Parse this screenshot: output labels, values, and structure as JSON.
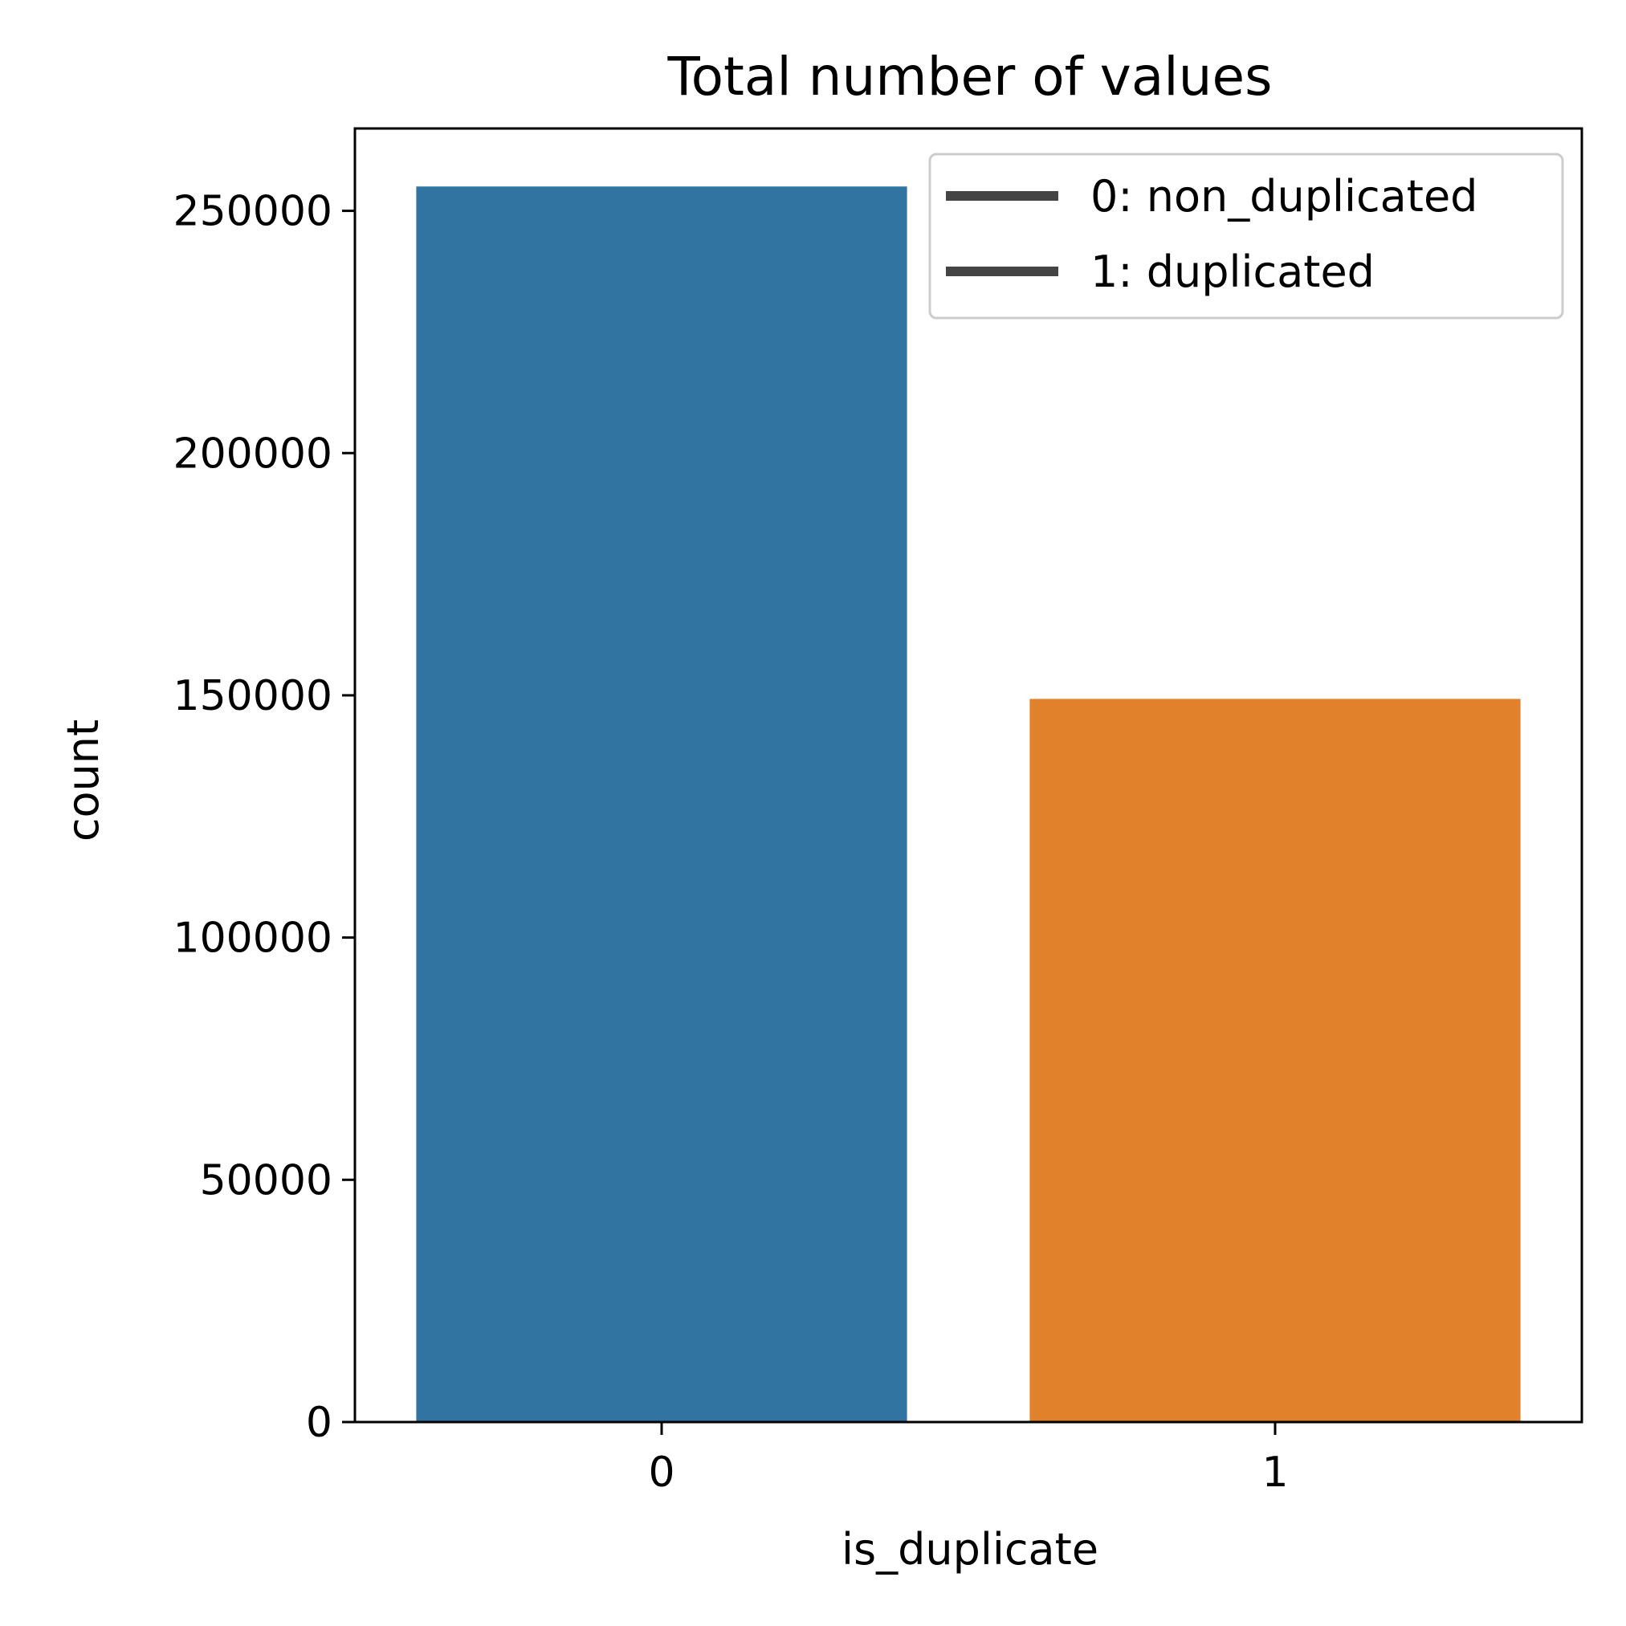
{
  "chart_data": {
    "type": "bar",
    "title": "Total number of values",
    "xlabel": "is_duplicate",
    "ylabel": "count",
    "categories": [
      "0",
      "1"
    ],
    "values": [
      255027,
      149263
    ],
    "colors": [
      "#3274a1",
      "#e1812c"
    ],
    "ylim": [
      0,
      267000
    ],
    "yticks": [
      0,
      50000,
      100000,
      150000,
      200000,
      250000
    ],
    "ytick_labels": [
      "0",
      "50000",
      "100000",
      "150000",
      "200000",
      "250000"
    ],
    "grid": false,
    "legend": {
      "placement": "top-right",
      "entries": [
        "0: non_duplicated",
        "1: duplicated"
      ],
      "line_color": "#444444"
    }
  }
}
